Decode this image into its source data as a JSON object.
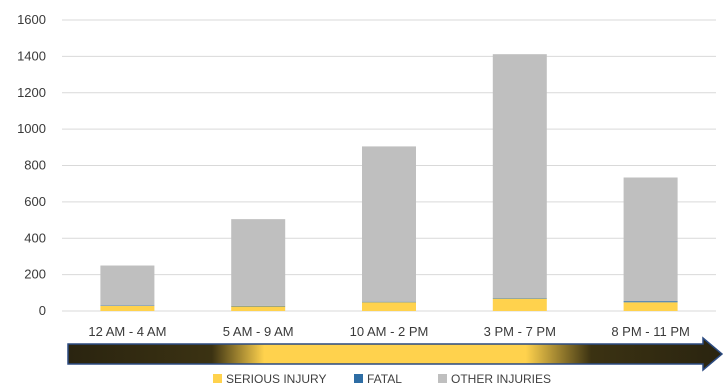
{
  "chart_data": {
    "type": "bar",
    "stacked": true,
    "categories": [
      "12 AM - 4 AM",
      "5 AM - 9 AM",
      "10 AM - 2 PM",
      "3 PM - 7 PM",
      "8 PM - 11 PM"
    ],
    "series": [
      {
        "name": "SERIOUS INJURY",
        "values": [
          28,
          25,
          48,
          68,
          48
        ],
        "color": "#ffd24d"
      },
      {
        "name": "FATAL",
        "values": [
          2,
          3,
          3,
          3,
          6
        ],
        "color": "#2e6da4"
      },
      {
        "name": "OTHER INJURIES",
        "values": [
          220,
          477,
          854,
          1341,
          680
        ],
        "color": "#bfbfbf"
      }
    ],
    "yticks": [
      0,
      200,
      400,
      600,
      800,
      1000,
      1200,
      1400,
      1600
    ],
    "ylim": [
      0,
      1600
    ],
    "grid": true,
    "legend_position": "bottom",
    "title": "",
    "xlabel": "",
    "ylabel": ""
  },
  "arrow": {
    "type": "time-gradient-arrow",
    "colors": [
      "#2a2410",
      "#ffd24d",
      "#2a2410"
    ]
  }
}
